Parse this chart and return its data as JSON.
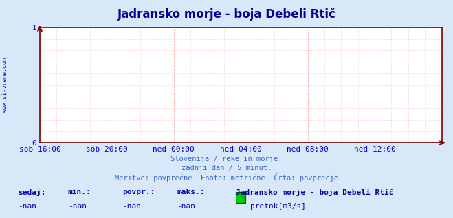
{
  "title": "Jadransko morje - boja Debeli Rtič",
  "bg_color": "#d8e8f8",
  "plot_bg_color": "#ffffff",
  "grid_color_major": "#ffaaaa",
  "grid_color_minor": "#ffcccc",
  "axis_color": "#800000",
  "text_color": "#0000cc",
  "watermark": "www.si-vreme.com",
  "xlabels": [
    "sob 16:00",
    "sob 20:00",
    "ned 00:00",
    "ned 04:00",
    "ned 08:00",
    "ned 12:00"
  ],
  "xtick_positions": [
    0,
    4,
    8,
    12,
    16,
    20
  ],
  "xmax": 24,
  "ylim": [
    0,
    1
  ],
  "yticks": [
    0,
    1
  ],
  "subtitle1": "Slovenija / reke in morje.",
  "subtitle2": "zadnji dan / 5 minut.",
  "subtitle3": "Meritve: povprečne  Enote: metrične  Črta: povprečje",
  "legend_title": "Jadransko morje - boja Debeli Rtič",
  "legend_color": "#00cc00",
  "legend_label": "pretok[m3/s]",
  "stats_labels": [
    "sedaj:",
    "min.:",
    "povpr.:",
    "maks.:"
  ],
  "stats_values": [
    "-nan",
    "-nan",
    "-nan",
    "-nan"
  ],
  "title_color": "#000099",
  "title_fontsize": 12,
  "label_fontsize": 8,
  "subtitle_color": "#3366cc",
  "stats_label_color": "#0000bb",
  "stats_value_color": "#0000bb"
}
